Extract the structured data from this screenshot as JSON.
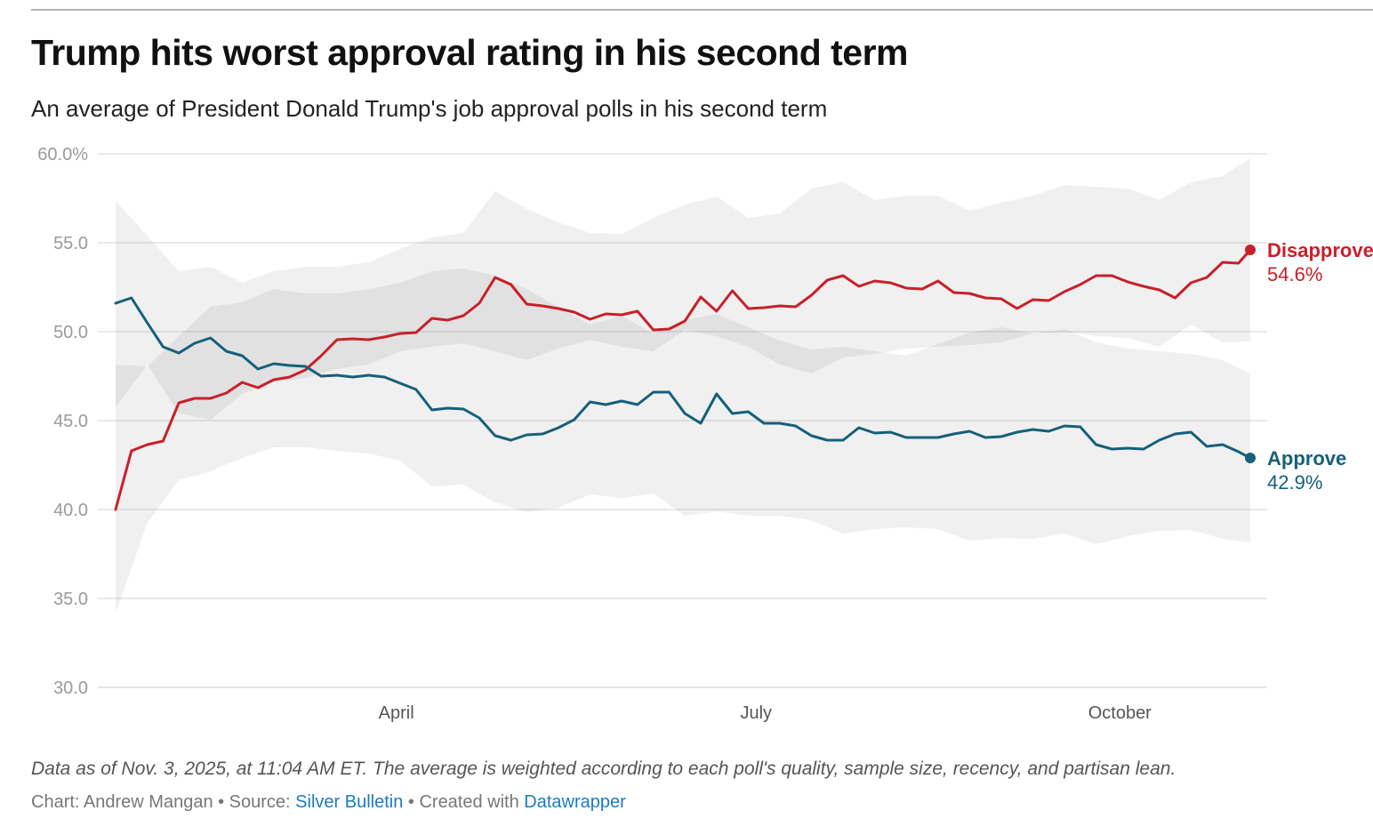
{
  "header": {
    "title": "Trump hits worst approval rating in his second term",
    "subtitle": "An average of President Donald Trump's job approval polls in his second term"
  },
  "footer": {
    "notes": "Data as of Nov. 3, 2025, at 11:04 AM ET. The average is weighted according to each poll's quality, sample size, recency, and partisan lean.",
    "chart_by": "Chart: Andrew Mangan",
    "sep1": " • Source: ",
    "source_link": "Silver Bulletin",
    "sep2": " • Created with ",
    "tool_link": "Datawrapper"
  },
  "chart_data": {
    "type": "line",
    "title": "Trump hits worst approval rating in his second term",
    "subtitle": "An average of President Donald Trump's job approval polls in his second term",
    "ylim": [
      30,
      60
    ],
    "yticks": [
      30,
      35,
      40,
      45,
      50,
      55,
      60
    ],
    "ytick_labels": [
      "30.0",
      "35.0",
      "40.0",
      "45.0",
      "50.0",
      "55.0",
      "60.0%"
    ],
    "xticks": [
      {
        "date": "2025-04-01",
        "label": "April"
      },
      {
        "date": "2025-07-01",
        "label": "July"
      },
      {
        "date": "2025-10-01",
        "label": "October"
      }
    ],
    "grid": true,
    "colors": {
      "disapprove": "#c8202a",
      "approve": "#15607a",
      "band": "#ededed",
      "grid": "#dddddd"
    },
    "x": [
      "2025-01-20",
      "2025-01-24",
      "2025-01-28",
      "2025-02-01",
      "2025-02-05",
      "2025-02-09",
      "2025-02-13",
      "2025-02-17",
      "2025-02-21",
      "2025-02-25",
      "2025-03-01",
      "2025-03-05",
      "2025-03-09",
      "2025-03-13",
      "2025-03-17",
      "2025-03-21",
      "2025-03-25",
      "2025-03-29",
      "2025-04-02",
      "2025-04-06",
      "2025-04-10",
      "2025-04-14",
      "2025-04-18",
      "2025-04-22",
      "2025-04-26",
      "2025-04-30",
      "2025-05-04",
      "2025-05-08",
      "2025-05-12",
      "2025-05-16",
      "2025-05-20",
      "2025-05-24",
      "2025-05-28",
      "2025-06-01",
      "2025-06-05",
      "2025-06-09",
      "2025-06-13",
      "2025-06-17",
      "2025-06-21",
      "2025-06-25",
      "2025-06-29",
      "2025-07-03",
      "2025-07-07",
      "2025-07-11",
      "2025-07-15",
      "2025-07-19",
      "2025-07-23",
      "2025-07-27",
      "2025-07-31",
      "2025-08-04",
      "2025-08-08",
      "2025-08-12",
      "2025-08-16",
      "2025-08-20",
      "2025-08-24",
      "2025-08-28",
      "2025-09-01",
      "2025-09-05",
      "2025-09-09",
      "2025-09-13",
      "2025-09-17",
      "2025-09-21",
      "2025-09-25",
      "2025-09-29",
      "2025-10-03",
      "2025-10-07",
      "2025-10-11",
      "2025-10-15",
      "2025-10-19",
      "2025-10-23",
      "2025-10-27",
      "2025-10-31",
      "2025-11-03"
    ],
    "series": [
      {
        "name": "Disapprove",
        "key": "disapprove",
        "last_label": "54.6%",
        "values": [
          40.0,
          43.3,
          43.65,
          43.85,
          46.0,
          46.25,
          46.25,
          46.55,
          47.15,
          46.85,
          47.3,
          47.45,
          47.85,
          48.65,
          49.55,
          49.6,
          49.55,
          49.7,
          49.9,
          49.95,
          50.75,
          50.65,
          50.9,
          51.6,
          53.05,
          52.65,
          51.55,
          51.45,
          51.3,
          51.1,
          50.7,
          51.0,
          50.95,
          51.15,
          50.1,
          50.15,
          50.6,
          51.95,
          51.15,
          52.3,
          51.3,
          51.35,
          51.45,
          51.4,
          52.05,
          52.9,
          53.15,
          52.55,
          52.85,
          52.75,
          52.45,
          52.4,
          52.85,
          52.2,
          52.15,
          51.9,
          51.85,
          51.3,
          51.8,
          51.75,
          52.25,
          52.65,
          53.15,
          53.15,
          52.8,
          52.55,
          52.35,
          51.9,
          52.75,
          53.05,
          53.9,
          53.85,
          54.6
        ]
      },
      {
        "name": "Approve",
        "key": "approve",
        "last_label": "42.9%",
        "values": [
          51.6,
          51.9,
          50.5,
          49.15,
          48.8,
          49.35,
          49.65,
          48.9,
          48.65,
          47.9,
          48.2,
          48.1,
          48.05,
          47.5,
          47.55,
          47.45,
          47.55,
          47.45,
          47.1,
          46.75,
          45.6,
          45.7,
          45.65,
          45.15,
          44.15,
          43.9,
          44.2,
          44.25,
          44.6,
          45.05,
          46.05,
          45.9,
          46.1,
          45.9,
          46.6,
          46.6,
          45.4,
          44.85,
          46.5,
          45.4,
          45.5,
          44.85,
          44.85,
          44.7,
          44.15,
          43.9,
          43.9,
          44.6,
          44.3,
          44.35,
          44.05,
          44.05,
          44.05,
          44.25,
          44.4,
          44.05,
          44.1,
          44.35,
          44.5,
          44.4,
          44.7,
          44.65,
          43.65,
          43.4,
          43.45,
          43.4,
          43.9,
          44.25,
          44.35,
          43.55,
          43.65,
          43.25,
          42.9
        ]
      }
    ],
    "bands_x": [
      "2025-01-20",
      "2025-01-28",
      "2025-02-05",
      "2025-02-13",
      "2025-02-21",
      "2025-03-01",
      "2025-03-09",
      "2025-03-17",
      "2025-03-25",
      "2025-04-02",
      "2025-04-10",
      "2025-04-18",
      "2025-04-26",
      "2025-05-04",
      "2025-05-12",
      "2025-05-20",
      "2025-05-28",
      "2025-06-05",
      "2025-06-13",
      "2025-06-21",
      "2025-06-29",
      "2025-07-07",
      "2025-07-15",
      "2025-07-23",
      "2025-07-31",
      "2025-08-08",
      "2025-08-16",
      "2025-08-24",
      "2025-09-01",
      "2025-09-09",
      "2025-09-17",
      "2025-09-25",
      "2025-10-03",
      "2025-10-11",
      "2025-10-19",
      "2025-10-27",
      "2025-11-03"
    ],
    "bands": [
      {
        "key": "disapprove",
        "upper": [
          57.35,
          55.4,
          53.4,
          53.65,
          52.75,
          53.4,
          53.65,
          53.65,
          53.9,
          54.65,
          55.3,
          55.55,
          57.9,
          56.9,
          56.15,
          55.55,
          55.5,
          56.4,
          57.15,
          57.6,
          56.4,
          56.65,
          58.05,
          58.4,
          57.4,
          57.65,
          57.65,
          56.8,
          57.25,
          57.65,
          58.25,
          58.15,
          58.05,
          57.4,
          58.4,
          58.75,
          59.75
        ],
        "lower": [
          45.75,
          48.15,
          45.4,
          45.05,
          46.5,
          47.15,
          47.4,
          47.9,
          48.15,
          48.9,
          49.15,
          49.35,
          48.9,
          48.4,
          49.05,
          49.55,
          49.15,
          48.9,
          50.1,
          49.75,
          49.15,
          48.15,
          47.65,
          48.55,
          48.75,
          49.05,
          49.15,
          49.25,
          49.4,
          49.9,
          50.0,
          49.75,
          49.65,
          49.15,
          50.4,
          49.4,
          49.45
        ]
      },
      {
        "key": "approve",
        "upper": [
          48.15,
          48.05,
          49.75,
          51.4,
          51.65,
          52.4,
          52.15,
          52.15,
          52.4,
          52.75,
          53.4,
          53.55,
          53.15,
          52.4,
          51.4,
          50.4,
          50.9,
          49.9,
          50.65,
          51.0,
          50.25,
          49.5,
          49.0,
          49.15,
          48.9,
          48.65,
          49.3,
          49.95,
          50.25,
          49.9,
          50.15,
          49.4,
          49.05,
          48.9,
          48.75,
          48.4,
          47.65
        ],
        "lower": [
          34.15,
          39.25,
          41.65,
          42.15,
          42.9,
          43.5,
          43.5,
          43.3,
          43.15,
          42.75,
          41.3,
          41.4,
          40.4,
          39.85,
          40.1,
          40.85,
          40.65,
          40.9,
          39.65,
          39.9,
          39.65,
          39.65,
          39.4,
          38.65,
          38.9,
          39.0,
          38.9,
          38.25,
          38.4,
          38.35,
          38.65,
          38.05,
          38.5,
          38.8,
          38.85,
          38.35,
          38.15
        ]
      }
    ]
  }
}
